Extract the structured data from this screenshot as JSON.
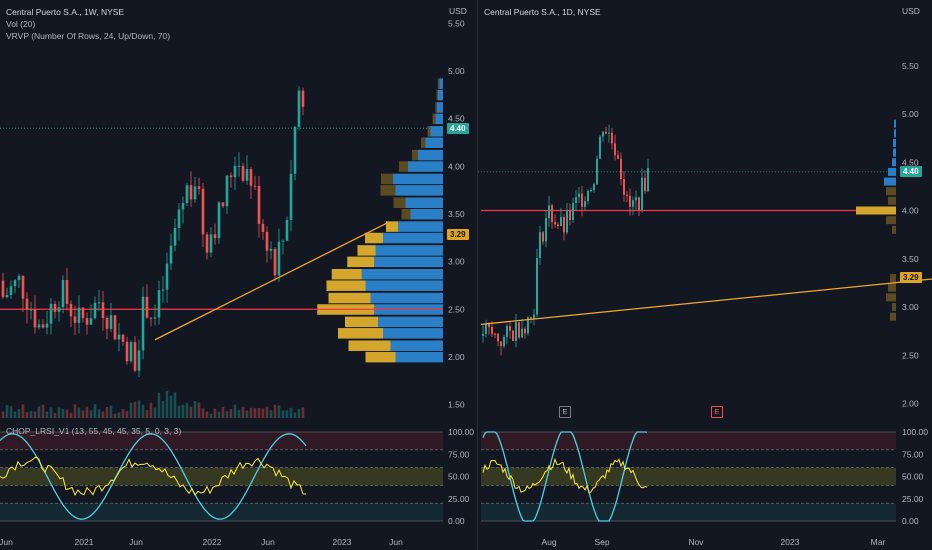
{
  "left": {
    "title": "Central Puerto S.A., 1W, NYSE",
    "vol_label": "Vol (20)",
    "vrvp_label": "VRVP (Number Of Rows, 24, Up/Down, 70)",
    "currency": "USD",
    "price_ticks": [
      "5.50",
      "5.00",
      "4.50",
      "4.00",
      "3.50",
      "3.00",
      "2.50",
      "2.00",
      "1.50"
    ],
    "last_price": "4.40",
    "trendline_value": "3.29",
    "indicator_label": "CHOP_LRSI_V1 (13, 55, 45, 45, 35, 5, 0, 3, 3)",
    "indicator_ticks": [
      "100.00",
      "75.00",
      "50.00",
      "25.00",
      "0.00"
    ],
    "time_ticks": [
      "Jun",
      "2021",
      "Jun",
      "2022",
      "Jun",
      "2023",
      "Jun"
    ]
  },
  "right": {
    "title": "Central Puerto S.A., 1D, NYSE",
    "currency": "USD",
    "price_ticks": [
      "5.50",
      "5.00",
      "4.50",
      "4.00",
      "3.50",
      "3.00",
      "2.50",
      "2.00"
    ],
    "last_price": "4.40",
    "trendline_value": "3.29",
    "earnings_marker": "E",
    "indicator_ticks": [
      "100.00",
      "75.00",
      "50.00",
      "25.00",
      "0.00"
    ],
    "time_ticks": [
      "Aug",
      "Sep",
      "Nov",
      "2023",
      "Mar"
    ]
  },
  "colors": {
    "up": "#26a69a",
    "down": "#ef5350",
    "trendline": "#f0a830",
    "resistance": "#f23645",
    "lrsi": "#ffeb3b",
    "chop": "#4dd0e1",
    "vp_up": "#2a7fc7",
    "vp_down": "#d4a72c"
  }
}
